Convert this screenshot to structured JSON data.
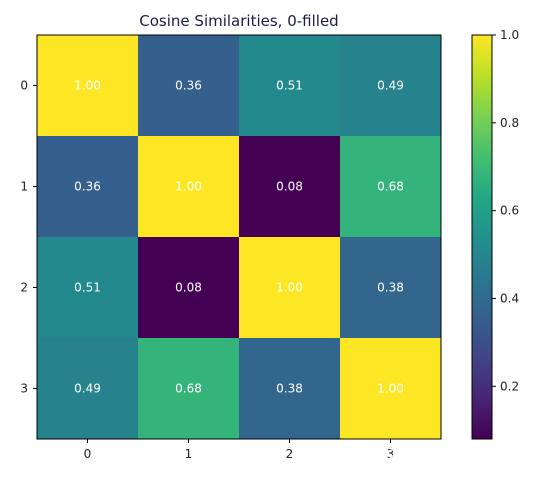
{
  "chart_data": {
    "type": "heatmap",
    "title": "Cosine Similarities, 0-filled",
    "xlabel": "",
    "ylabel": "",
    "x_categories": [
      "0",
      "1",
      "2",
      "3"
    ],
    "y_categories": [
      "0",
      "1",
      "2",
      "3"
    ],
    "values": [
      [
        1.0,
        0.36,
        0.51,
        0.49
      ],
      [
        0.36,
        1.0,
        0.08,
        0.68
      ],
      [
        0.51,
        0.08,
        1.0,
        0.38
      ],
      [
        0.49,
        0.68,
        0.38,
        1.0
      ]
    ],
    "cell_labels": [
      [
        "1.00",
        "0.36",
        "0.51",
        "0.49"
      ],
      [
        "0.36",
        "1.00",
        "0.08",
        "0.68"
      ],
      [
        "0.51",
        "0.08",
        "1.00",
        "0.38"
      ],
      [
        "0.49",
        "0.68",
        "0.38",
        "1.00"
      ]
    ],
    "colormap": "viridis",
    "vmin": 0.08,
    "vmax": 1.0,
    "colorbar_ticks": [
      "0.2",
      "0.4",
      "0.6",
      "0.8",
      "1.0"
    ],
    "colorbar_tick_values": [
      0.2,
      0.4,
      0.6,
      0.8,
      1.0
    ],
    "grid": false
  },
  "watermark": "掘金技术社区 @ 布客飞龙"
}
